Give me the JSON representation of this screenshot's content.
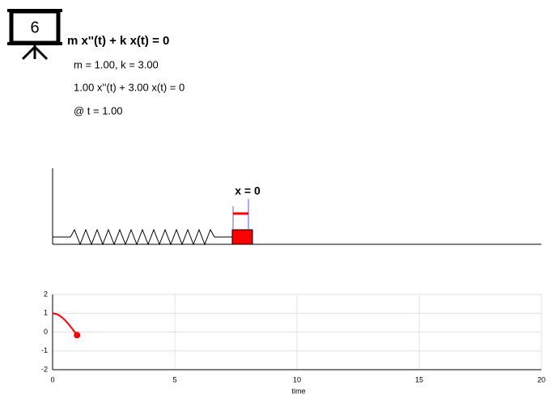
{
  "header": {
    "icon_label": "6",
    "equation": "m x''(t) + k x(t) = 0",
    "params": "m = 1.00, k = 3.00",
    "instance": "1.00 x''(t) + 3.00 x(t) = 0",
    "time": "@ t = 1.00"
  },
  "scene": {
    "position_label": "x = 0"
  },
  "chart_data": {
    "type": "line",
    "x_label": "time",
    "x": [
      0,
      0.2,
      0.4,
      0.6,
      0.8,
      1.0
    ],
    "values": [
      1,
      0.941,
      0.769,
      0.507,
      0.184,
      -0.161
    ],
    "color": "#ff0000",
    "xlim": [
      0,
      20
    ],
    "ylim": [
      -2,
      2
    ],
    "xticks": [
      0,
      5,
      10,
      15,
      20
    ],
    "yticks": [
      -2,
      -1,
      0,
      1,
      2
    ],
    "grid": true
  }
}
